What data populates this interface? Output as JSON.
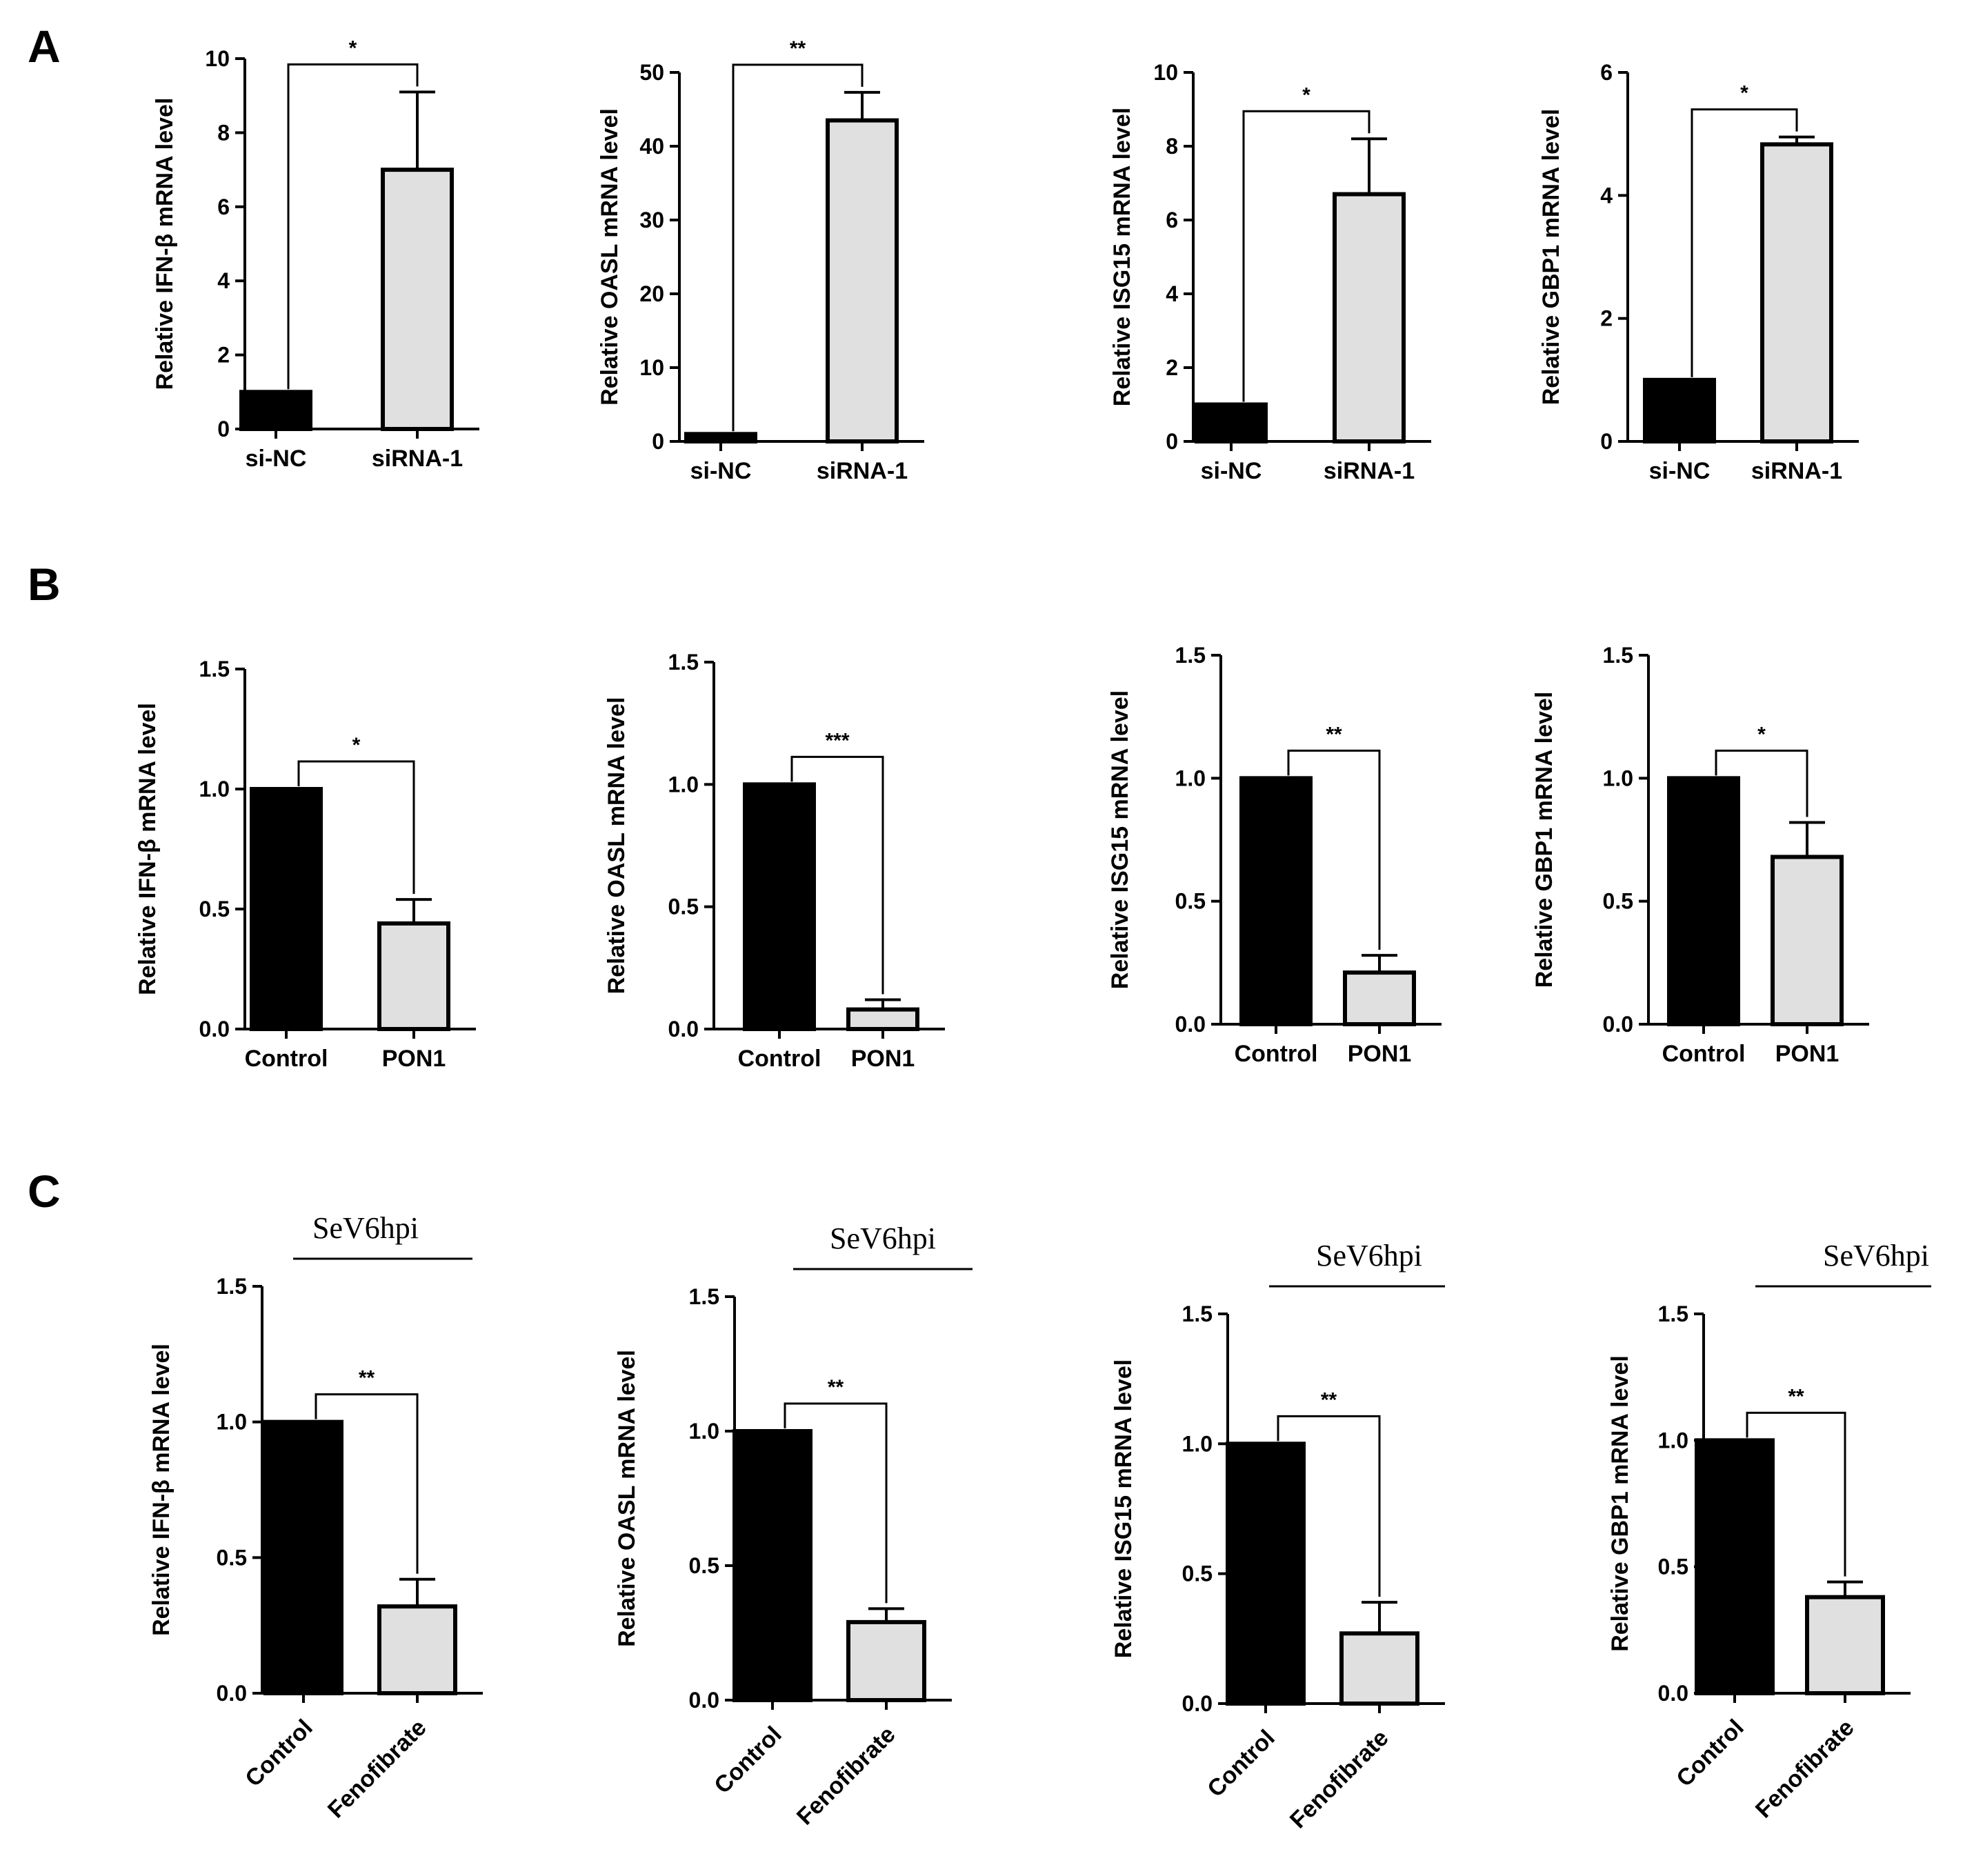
{
  "panels": [
    {
      "letter": "A"
    },
    {
      "letter": "B"
    },
    {
      "letter": "C"
    }
  ],
  "colors": {
    "bar_dark": "#000000",
    "bar_light": "#e0e0e0",
    "axis": "#000000"
  },
  "chart_data": [
    {
      "type": "bar",
      "panel": "A",
      "title": "",
      "ylabel": "Relative IFN-β mRNA level",
      "xlabel": "",
      "categories": [
        "si-NC",
        "siRNA-1"
      ],
      "values": [
        1.0,
        7.0
      ],
      "errors": [
        0,
        2.1
      ],
      "ylim": [
        0,
        10
      ],
      "yticks": [
        "0",
        "2",
        "4",
        "6",
        "8",
        "10"
      ],
      "significance": "*"
    },
    {
      "type": "bar",
      "panel": "A",
      "title": "",
      "ylabel": "Relative OASL mRNA level",
      "xlabel": "",
      "categories": [
        "si-NC",
        "siRNA-1"
      ],
      "values": [
        1.0,
        43.5
      ],
      "errors": [
        0,
        3.8
      ],
      "ylim": [
        0,
        50
      ],
      "yticks": [
        "0",
        "10",
        "20",
        "30",
        "40",
        "50"
      ],
      "significance": "**"
    },
    {
      "type": "bar",
      "panel": "A",
      "title": "",
      "ylabel": "Relative ISG15 mRNA level",
      "xlabel": "",
      "categories": [
        "si-NC",
        "siRNA-1"
      ],
      "values": [
        1.0,
        6.7
      ],
      "errors": [
        0,
        1.5
      ],
      "ylim": [
        0,
        10
      ],
      "yticks": [
        "0",
        "2",
        "4",
        "6",
        "8",
        "10"
      ],
      "significance": "*"
    },
    {
      "type": "bar",
      "panel": "A",
      "title": "",
      "ylabel": "Relative GBP1 mRNA level",
      "xlabel": "",
      "categories": [
        "si-NC",
        "siRNA-1"
      ],
      "values": [
        1.0,
        4.83
      ],
      "errors": [
        0,
        0.12
      ],
      "ylim": [
        0,
        6
      ],
      "yticks": [
        "0",
        "2",
        "4",
        "6"
      ],
      "significance": "*"
    },
    {
      "type": "bar",
      "panel": "B",
      "title": "",
      "ylabel": "Relative IFN-β mRNA level",
      "xlabel": "",
      "categories": [
        "Control",
        "PON1"
      ],
      "values": [
        1.0,
        0.44
      ],
      "errors": [
        0,
        0.1
      ],
      "ylim": [
        0,
        1.5
      ],
      "yticks": [
        "0.0",
        "0.5",
        "1.0",
        "1.5"
      ],
      "significance": "*"
    },
    {
      "type": "bar",
      "panel": "B",
      "title": "",
      "ylabel": "Relative OASL mRNA level",
      "xlabel": "",
      "categories": [
        "Control",
        "PON1"
      ],
      "values": [
        1.0,
        0.08
      ],
      "errors": [
        0,
        0.04
      ],
      "ylim": [
        0,
        1.5
      ],
      "yticks": [
        "0.0",
        "0.5",
        "1.0",
        "1.5"
      ],
      "significance": "***"
    },
    {
      "type": "bar",
      "panel": "B",
      "title": "",
      "ylabel": "Relative ISG15 mRNA level",
      "xlabel": "",
      "categories": [
        "Control",
        "PON1"
      ],
      "values": [
        1.0,
        0.21
      ],
      "errors": [
        0,
        0.07
      ],
      "ylim": [
        0,
        1.5
      ],
      "yticks": [
        "0.0",
        "0.5",
        "1.0",
        "1.5"
      ],
      "significance": "**"
    },
    {
      "type": "bar",
      "panel": "B",
      "title": "",
      "ylabel": "Relative GBP1 mRNA level",
      "xlabel": "",
      "categories": [
        "Control",
        "PON1"
      ],
      "values": [
        1.0,
        0.68
      ],
      "errors": [
        0,
        0.14
      ],
      "ylim": [
        0,
        1.5
      ],
      "yticks": [
        "0.0",
        "0.5",
        "1.0",
        "1.5"
      ],
      "significance": "*"
    },
    {
      "type": "bar",
      "panel": "C",
      "title": "SeV6hpi",
      "ylabel": "Relative IFN-β mRNA level",
      "xlabel": "",
      "categories": [
        "Control",
        "Fenofibrate"
      ],
      "values": [
        1.0,
        0.32
      ],
      "errors": [
        0,
        0.1
      ],
      "ylim": [
        0,
        1.5
      ],
      "yticks": [
        "0.0",
        "0.5",
        "1.0",
        "1.5"
      ],
      "significance": "**"
    },
    {
      "type": "bar",
      "panel": "C",
      "title": "SeV6hpi",
      "ylabel": "Relative OASL mRNA level",
      "xlabel": "",
      "categories": [
        "Control",
        "Fenofibrate"
      ],
      "values": [
        1.0,
        0.29
      ],
      "errors": [
        0,
        0.05
      ],
      "ylim": [
        0,
        1.5
      ],
      "yticks": [
        "0.0",
        "0.5",
        "1.0",
        "1.5"
      ],
      "significance": "**"
    },
    {
      "type": "bar",
      "panel": "C",
      "title": "SeV6hpi",
      "ylabel": "Relative ISG15 mRNA level",
      "xlabel": "",
      "categories": [
        "Control",
        "Fenofibrate"
      ],
      "values": [
        1.0,
        0.27
      ],
      "errors": [
        0,
        0.12
      ],
      "ylim": [
        0,
        1.5
      ],
      "yticks": [
        "0.0",
        "0.5",
        "1.0",
        "1.5"
      ],
      "significance": "**"
    },
    {
      "type": "bar",
      "panel": "C",
      "title": "SeV6hpi",
      "ylabel": "Relative GBP1 mRNA level",
      "xlabel": "",
      "categories": [
        "Control",
        "Fenofibrate"
      ],
      "values": [
        1.0,
        0.38
      ],
      "errors": [
        0,
        0.06
      ],
      "ylim": [
        0,
        1.5
      ],
      "yticks": [
        "0.0",
        "0.5",
        "1.0",
        "1.5"
      ],
      "significance": "**"
    }
  ]
}
